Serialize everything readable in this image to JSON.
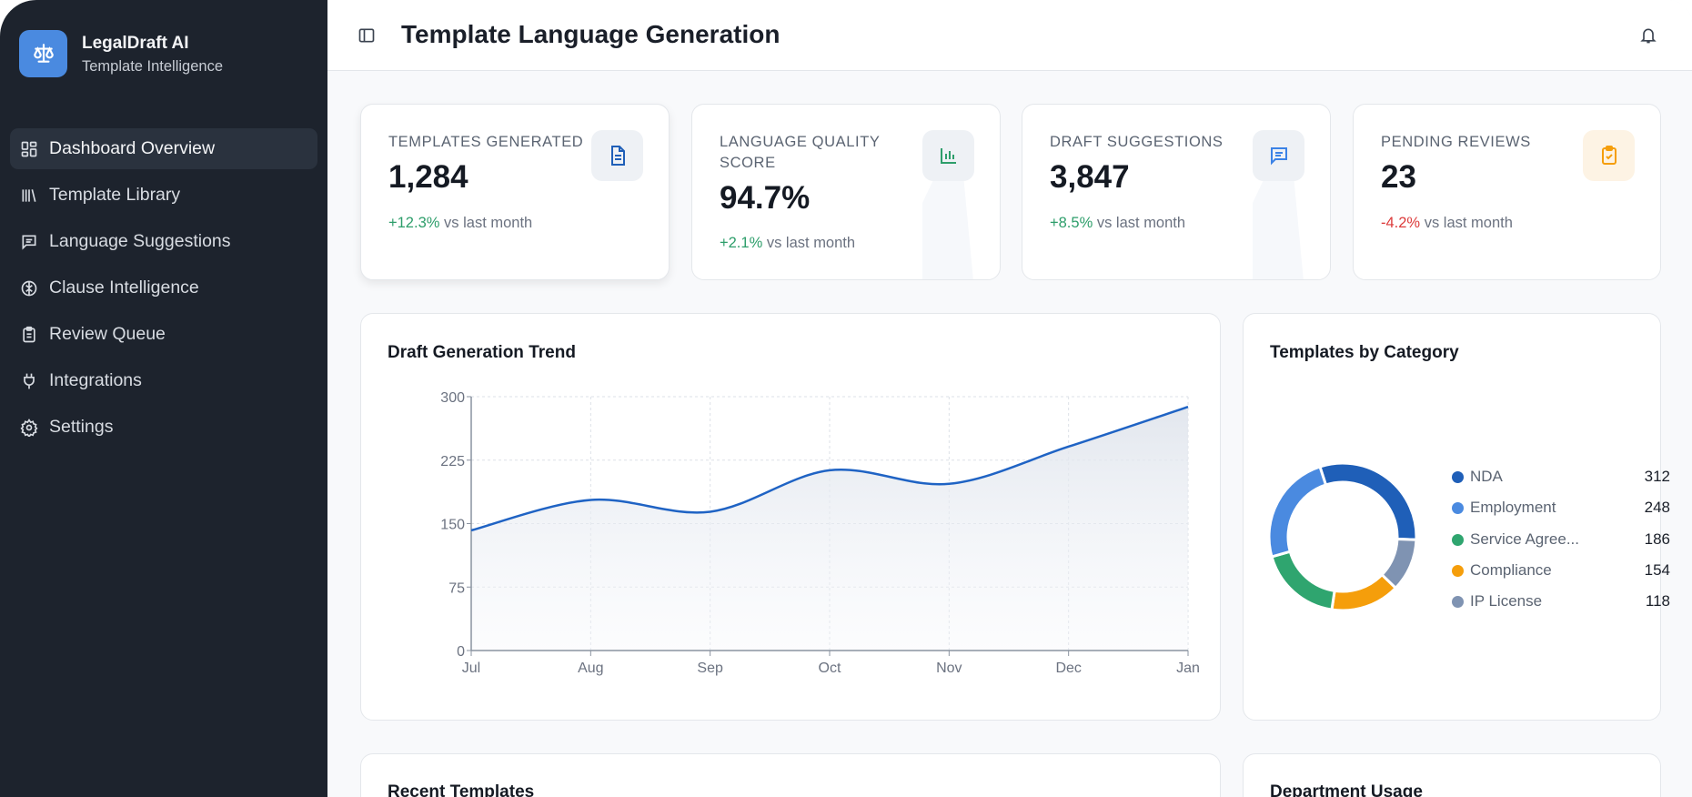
{
  "sidebar": {
    "brand": "LegalDraft AI",
    "subtitle": "Template Intelligence",
    "items": [
      {
        "label": "Dashboard Overview",
        "icon": "dashboard-icon",
        "active": true
      },
      {
        "label": "Template Library",
        "icon": "library-icon"
      },
      {
        "label": "Language Suggestions",
        "icon": "message-icon"
      },
      {
        "label": "Clause Intelligence",
        "icon": "brain-icon"
      },
      {
        "label": "Review Queue",
        "icon": "clipboard-icon"
      },
      {
        "label": "Integrations",
        "icon": "plug-icon"
      },
      {
        "label": "Settings",
        "icon": "gear-icon"
      }
    ]
  },
  "header": {
    "title": "Template Language Generation"
  },
  "stats": [
    {
      "label": "Templates Generated",
      "value": "1,284",
      "change": "+12.3%",
      "suffix": "vs last month",
      "trend": "up",
      "icon": "document-icon",
      "color": "#1f5fb8"
    },
    {
      "label": "Language Quality Score",
      "value": "94.7%",
      "change": "+2.1%",
      "suffix": "vs last month",
      "trend": "up",
      "icon": "bar-chart-icon",
      "color": "#2e9e6b"
    },
    {
      "label": "Draft Suggestions",
      "value": "3,847",
      "change": "+8.5%",
      "suffix": "vs last month",
      "trend": "up",
      "icon": "message-icon",
      "color": "#3b82e6"
    },
    {
      "label": "Pending Reviews",
      "value": "23",
      "change": "-4.2%",
      "suffix": "vs last month",
      "trend": "down",
      "icon": "clipboard-check-icon",
      "color": "#f59e0b"
    }
  ],
  "colors": {
    "up": "#2e9e6b",
    "down": "#dc3b3b",
    "line": "#1f63c4"
  },
  "chart_data": [
    {
      "type": "area",
      "title": "Draft Generation Trend",
      "categories": [
        "Jul",
        "Aug",
        "Sep",
        "Oct",
        "Nov",
        "Dec",
        "Jan"
      ],
      "values": [
        142,
        178,
        164,
        213,
        197,
        241,
        288
      ],
      "ylim": [
        0,
        300
      ],
      "yticks": [
        "0",
        "75",
        "150",
        "225",
        "300"
      ],
      "grid": true
    },
    {
      "type": "pie",
      "title": "Templates by Category",
      "donut": true,
      "categories": [
        "NDA",
        "Employment",
        "Service Agree...",
        "Compliance",
        "IP License"
      ],
      "values": [
        312,
        248,
        186,
        154,
        118
      ],
      "colors": [
        "#1f5fb8",
        "#4a8ae0",
        "#2fa56f",
        "#f59e0b",
        "#7f93b2"
      ],
      "legend": "right"
    }
  ],
  "bottom": {
    "left_title": "Recent Templates",
    "right_title": "Department Usage"
  }
}
